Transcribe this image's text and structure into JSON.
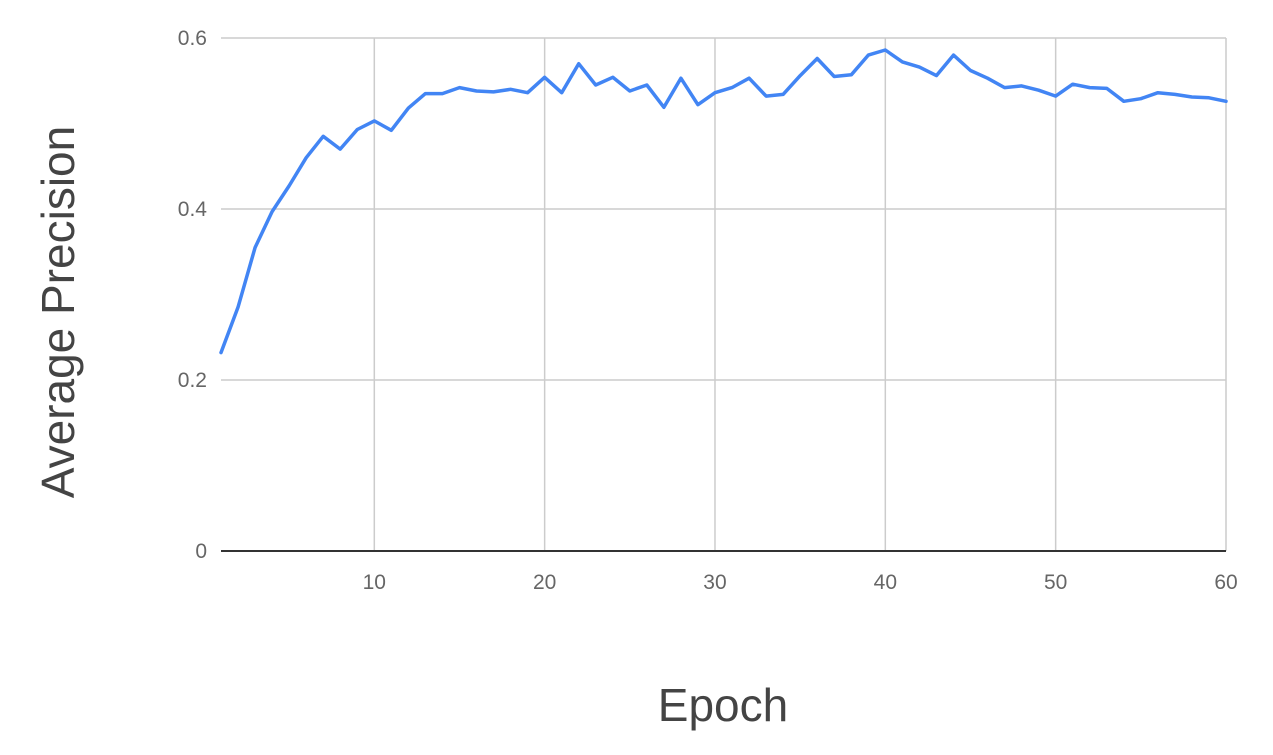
{
  "chart_data": {
    "type": "line",
    "xlabel": "Epoch",
    "ylabel": "Average Precision",
    "xlim": [
      1,
      60
    ],
    "ylim": [
      0,
      0.6
    ],
    "x_ticks": [
      10,
      20,
      30,
      40,
      50,
      60
    ],
    "y_ticks": [
      0,
      0.2,
      0.4,
      0.6
    ],
    "grid": true,
    "legend": "none",
    "series": [
      {
        "color": "#4285f4",
        "x": [
          1,
          2,
          3,
          4,
          5,
          6,
          7,
          8,
          9,
          10,
          11,
          12,
          13,
          14,
          15,
          16,
          17,
          18,
          19,
          20,
          21,
          22,
          23,
          24,
          25,
          26,
          27,
          28,
          29,
          30,
          31,
          32,
          33,
          34,
          35,
          36,
          37,
          38,
          39,
          40,
          41,
          42,
          43,
          44,
          45,
          46,
          47,
          48,
          49,
          50,
          51,
          52,
          53,
          54,
          55,
          56,
          57,
          58,
          59,
          60
        ],
        "y": [
          0.232,
          0.285,
          0.355,
          0.397,
          0.427,
          0.46,
          0.485,
          0.47,
          0.493,
          0.503,
          0.492,
          0.518,
          0.535,
          0.535,
          0.542,
          0.538,
          0.537,
          0.54,
          0.536,
          0.554,
          0.536,
          0.57,
          0.545,
          0.554,
          0.538,
          0.545,
          0.519,
          0.553,
          0.522,
          0.536,
          0.542,
          0.553,
          0.532,
          0.534,
          0.556,
          0.576,
          0.555,
          0.557,
          0.58,
          0.586,
          0.572,
          0.566,
          0.556,
          0.58,
          0.562,
          0.553,
          0.542,
          0.544,
          0.539,
          0.532,
          0.546,
          0.542,
          0.541,
          0.526,
          0.529,
          0.536,
          0.534,
          0.531,
          0.53,
          0.526
        ]
      }
    ]
  }
}
